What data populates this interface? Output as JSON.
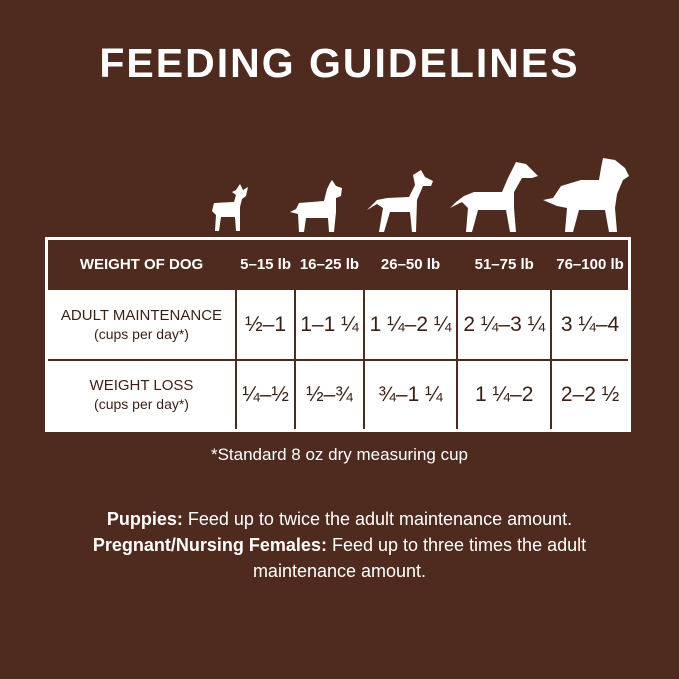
{
  "title": "FEEDING GUIDELINES",
  "dog_icons": [
    "tiny-dog-icon",
    "small-terrier-icon",
    "medium-dog-icon",
    "large-dog-icon",
    "giant-dog-icon"
  ],
  "table": {
    "header_label": "WEIGHT OF DOG",
    "columns": [
      "5–15 lb",
      "16–25 lb",
      "26–50 lb",
      "51–75 lb",
      "76–100 lb"
    ],
    "rows": [
      {
        "label": "ADULT MAINTENANCE",
        "sub": "(cups per day*)",
        "values": [
          "½–1",
          "1–1 ¼",
          "1 ¼–2 ¼",
          "2 ¼–3 ¼",
          "3 ¼–4"
        ]
      },
      {
        "label": "WEIGHT LOSS",
        "sub": "(cups per day*)",
        "values": [
          "¼–½",
          "½–¾",
          "¾–1 ¼",
          "1 ¼–2",
          "2–2 ½"
        ]
      }
    ]
  },
  "footnote": "*Standard 8 oz dry measuring cup",
  "notes": [
    {
      "label": "Puppies:",
      "text": " Feed up to twice the adult maintenance amount."
    },
    {
      "label": "Pregnant/Nursing Females:",
      "text": " Feed up to three times the adult maintenance amount."
    }
  ],
  "colors": {
    "background": "#4f2b1f",
    "table_bg": "#ffffff",
    "text_dark": "#3a1f15"
  }
}
